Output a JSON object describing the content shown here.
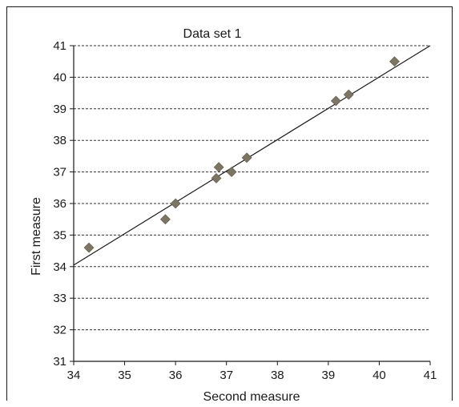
{
  "chart_data": {
    "type": "scatter",
    "title": "Data set 1",
    "xlabel": "Second measure",
    "ylabel": "First measure",
    "xlim": [
      34,
      41
    ],
    "ylim": [
      31,
      41
    ],
    "x_ticks": [
      "34",
      "35",
      "36",
      "37",
      "38",
      "39",
      "40",
      "41"
    ],
    "y_ticks": [
      "31",
      "32",
      "33",
      "34",
      "35",
      "36",
      "37",
      "38",
      "39",
      "40",
      "41"
    ],
    "grid": "horizontal-dashed",
    "marker": "diamond",
    "points": [
      {
        "x": 34.3,
        "y": 34.6
      },
      {
        "x": 35.8,
        "y": 35.5
      },
      {
        "x": 36.0,
        "y": 36.0
      },
      {
        "x": 36.8,
        "y": 36.8
      },
      {
        "x": 36.85,
        "y": 37.15
      },
      {
        "x": 37.1,
        "y": 37.0
      },
      {
        "x": 37.4,
        "y": 37.45
      },
      {
        "x": 39.15,
        "y": 39.25
      },
      {
        "x": 39.4,
        "y": 39.45
      },
      {
        "x": 40.3,
        "y": 40.5
      }
    ],
    "fit_line": {
      "x": [
        34,
        41
      ],
      "y": [
        34.05,
        41.0
      ]
    },
    "colors": {
      "marker": "#7d7563",
      "line": "#1a1a1a",
      "grid": "#333333"
    }
  }
}
